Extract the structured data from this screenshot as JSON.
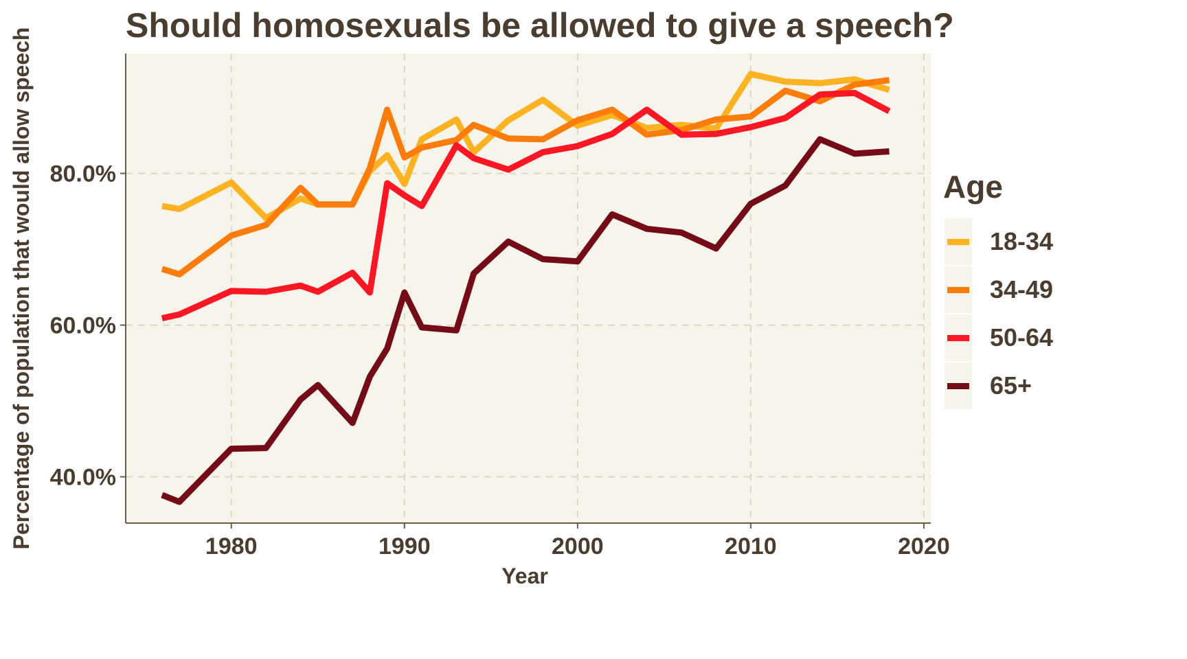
{
  "chart_data": {
    "type": "line",
    "title": "Should homosexuals be allowed to give a speech?",
    "xlabel": "Year",
    "ylabel": "Percentage of population that would allow speech",
    "xlim": [
      1973.9,
      2020.4
    ],
    "ylim": [
      33.9,
      95.8
    ],
    "xticks": [
      1980,
      1990,
      2000,
      2010,
      2020
    ],
    "xtick_labels": [
      "1980",
      "1990",
      "2000",
      "2010",
      "2020"
    ],
    "yticks": [
      40,
      60,
      80
    ],
    "ytick_labels": [
      "40.0%",
      "60.0%",
      "80.0%"
    ],
    "grid": true,
    "legend": {
      "title": "Age",
      "position": "right"
    },
    "background": "#f7f4ec",
    "x": [
      1976,
      1977,
      1980,
      1982,
      1984,
      1985,
      1987,
      1988,
      1989,
      1990,
      1991,
      1993,
      1994,
      1996,
      1998,
      2000,
      2002,
      2004,
      2006,
      2008,
      2010,
      2012,
      2014,
      2016,
      2018
    ],
    "series": [
      {
        "name": "18-34",
        "color": "#fbb323",
        "values": [
          75.7,
          75.3,
          78.8,
          74.1,
          76.7,
          75.9,
          75.9,
          80.3,
          82.4,
          78.6,
          84.5,
          87.1,
          82.8,
          87.0,
          89.7,
          86.3,
          87.7,
          86.0,
          86.4,
          85.9,
          93.1,
          92.1,
          91.9,
          92.4,
          91.0
        ]
      },
      {
        "name": "34-49",
        "color": "#fc7c0c",
        "values": [
          67.4,
          66.7,
          71.8,
          73.2,
          78.1,
          75.9,
          75.9,
          80.7,
          88.4,
          82.1,
          83.4,
          84.4,
          86.4,
          84.6,
          84.5,
          87.0,
          88.4,
          85.1,
          85.7,
          87.1,
          87.5,
          90.9,
          89.5,
          91.7,
          92.3
        ]
      },
      {
        "name": "50-64",
        "color": "#fc1724",
        "values": [
          60.9,
          61.4,
          64.5,
          64.4,
          65.2,
          64.4,
          66.9,
          64.3,
          78.7,
          77.1,
          75.7,
          83.7,
          82.0,
          80.5,
          82.8,
          83.6,
          85.2,
          88.4,
          85.1,
          85.2,
          86.1,
          87.3,
          90.4,
          90.6,
          88.2
        ]
      },
      {
        "name": "65+",
        "color": "#730c16",
        "values": [
          37.6,
          36.7,
          43.7,
          43.8,
          50.2,
          52.1,
          47.1,
          53.2,
          56.9,
          64.3,
          59.7,
          59.3,
          66.8,
          71.0,
          68.7,
          68.4,
          74.6,
          72.7,
          72.2,
          70.1,
          76.0,
          78.4,
          84.5,
          82.6,
          82.9
        ]
      }
    ]
  }
}
